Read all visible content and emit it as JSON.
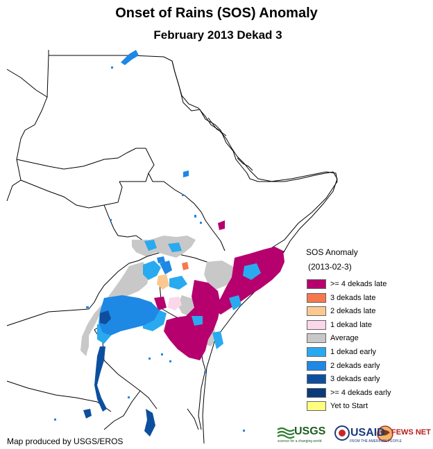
{
  "title": "Onset of Rains (SOS) Anomaly",
  "subtitle": "February 2013 Dekad 3",
  "legend": {
    "title": "SOS Anomaly",
    "date": "(2013-02-3)",
    "items": [
      {
        "label": ">= 4 dekads late",
        "color": "#b5006e"
      },
      {
        "label": "3 dekads late",
        "color": "#f5794c"
      },
      {
        "label": "2 dekads late",
        "color": "#fbc98f"
      },
      {
        "label": "1 dekad late",
        "color": "#fbd7ea"
      },
      {
        "label": "Average",
        "color": "#c8c8c8"
      },
      {
        "label": "1 dekad early",
        "color": "#29aaf0"
      },
      {
        "label": "2 dekads early",
        "color": "#1e88e5"
      },
      {
        "label": "3 dekads early",
        "color": "#0d4f9e"
      },
      {
        "label": ">= 4 dekads early",
        "color": "#0b3a7a"
      },
      {
        "label": "Yet to Start",
        "color": "#ffff7f"
      }
    ]
  },
  "credit": "Map produced by USGS/EROS",
  "logos": {
    "usgs": "USGS",
    "usgs_tagline": "science for a changing world",
    "usaid": "USAID",
    "usaid_tagline": "FROM THE AMERICAN PEOPLE",
    "fewsnet": "FEWS NET"
  }
}
